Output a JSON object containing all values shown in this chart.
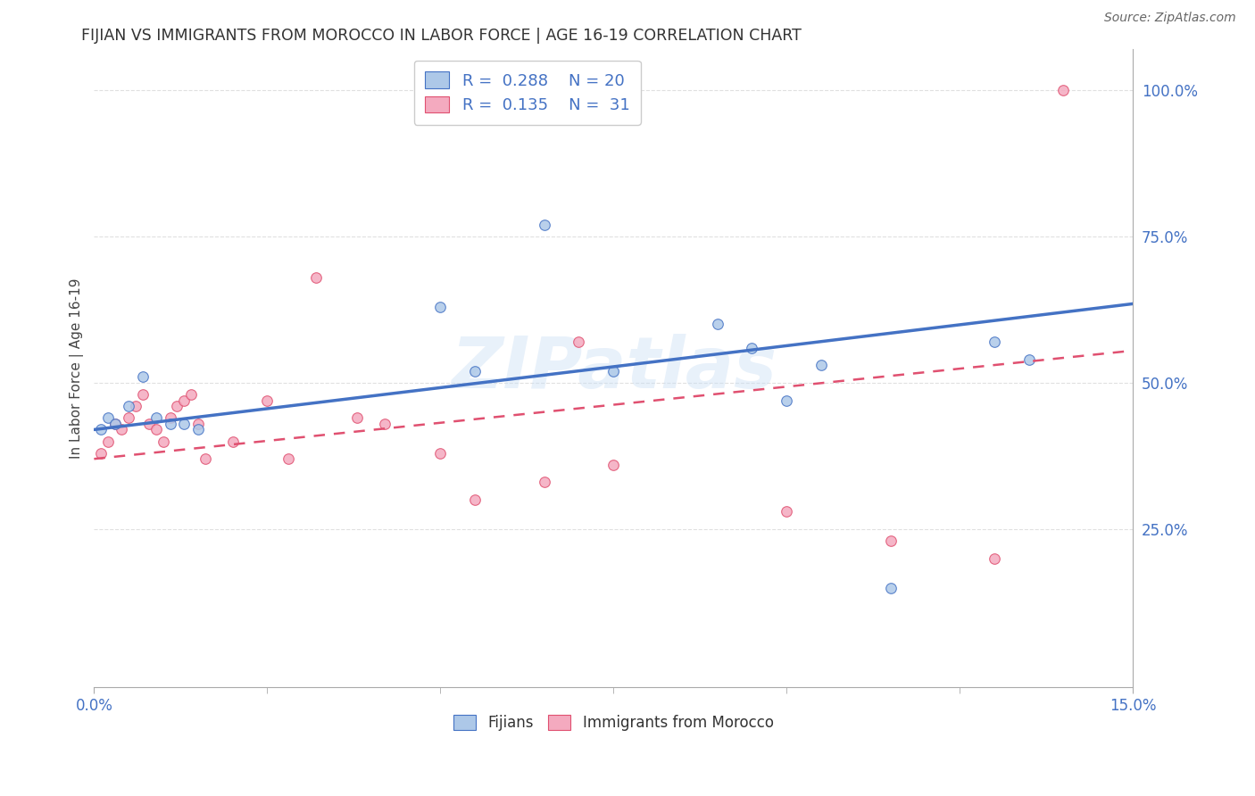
{
  "title": "FIJIAN VS IMMIGRANTS FROM MOROCCO IN LABOR FORCE | AGE 16-19 CORRELATION CHART",
  "source": "Source: ZipAtlas.com",
  "ylabel": "In Labor Force | Age 16-19",
  "xlim": [
    0.0,
    0.15
  ],
  "ylim": [
    -0.02,
    1.07
  ],
  "yticks": [
    0.25,
    0.5,
    0.75,
    1.0
  ],
  "ytick_labels": [
    "25.0%",
    "50.0%",
    "75.0%",
    "100.0%"
  ],
  "xticks": [
    0.0,
    0.15
  ],
  "xtick_labels": [
    "0.0%",
    "15.0%"
  ],
  "watermark": "ZIPatlas",
  "fijians": {
    "x": [
      0.001,
      0.002,
      0.003,
      0.005,
      0.007,
      0.009,
      0.011,
      0.013,
      0.015,
      0.05,
      0.055,
      0.065,
      0.075,
      0.09,
      0.095,
      0.1,
      0.105,
      0.115,
      0.13,
      0.135
    ],
    "y": [
      0.42,
      0.44,
      0.43,
      0.46,
      0.51,
      0.44,
      0.43,
      0.43,
      0.42,
      0.63,
      0.52,
      0.77,
      0.52,
      0.6,
      0.56,
      0.47,
      0.53,
      0.15,
      0.57,
      0.54
    ],
    "R": 0.288,
    "N": 20,
    "color": "#adc8e8",
    "edge_color": "#4472c4",
    "line_color": "#4472c4",
    "marker_size": 70
  },
  "morocco": {
    "x": [
      0.001,
      0.002,
      0.003,
      0.004,
      0.005,
      0.006,
      0.007,
      0.008,
      0.009,
      0.01,
      0.011,
      0.012,
      0.013,
      0.014,
      0.015,
      0.016,
      0.02,
      0.025,
      0.028,
      0.032,
      0.038,
      0.042,
      0.05,
      0.055,
      0.065,
      0.07,
      0.075,
      0.1,
      0.115,
      0.13,
      0.14
    ],
    "y": [
      0.38,
      0.4,
      0.43,
      0.42,
      0.44,
      0.46,
      0.48,
      0.43,
      0.42,
      0.4,
      0.44,
      0.46,
      0.47,
      0.48,
      0.43,
      0.37,
      0.4,
      0.47,
      0.37,
      0.68,
      0.44,
      0.43,
      0.38,
      0.3,
      0.33,
      0.57,
      0.36,
      0.28,
      0.23,
      0.2,
      1.0
    ],
    "R": 0.135,
    "N": 31,
    "color": "#f4aabf",
    "edge_color": "#e05070",
    "line_color": "#e05070",
    "marker_size": 70
  },
  "fij_line": {
    "x0": 0.0,
    "y0": 0.42,
    "x1": 0.15,
    "y1": 0.635
  },
  "mor_line": {
    "x0": 0.0,
    "y0": 0.37,
    "x1": 0.15,
    "y1": 0.555
  },
  "title_color": "#333333",
  "axis_color": "#4472c4",
  "background_color": "#ffffff",
  "grid_color": "#e0e0e0"
}
